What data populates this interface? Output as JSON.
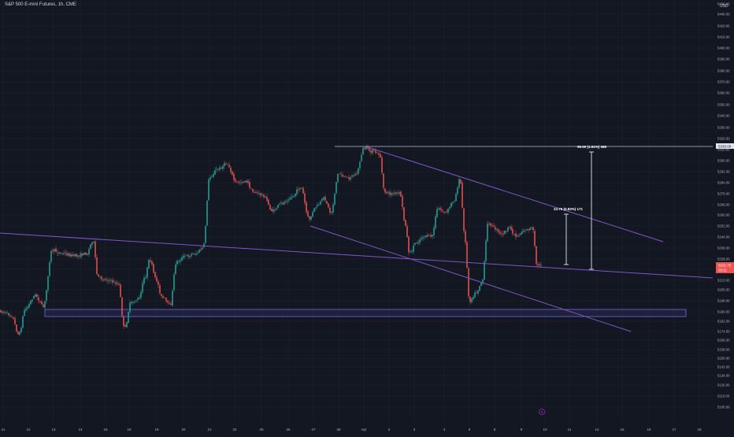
{
  "header": {
    "title": "S&P 500 E-mini Futures, 1h, CME",
    "currency": "USD"
  },
  "chart_data": {
    "type": "candlestick",
    "title": "S&P 500 E-mini Futures, 1h, CME",
    "y_axis_unit": "USD",
    "ylim": [
      5097,
      5478
    ],
    "y_ticks": [
      "5450.00",
      "5440.00",
      "5420.00",
      "5410.00",
      "5400.00",
      "5390.00",
      "5380.00",
      "5370.00",
      "5360.00",
      "5350.00",
      "5340.00",
      "5330.00",
      "5320.00",
      "5310.00",
      "5300.00",
      "5292.00",
      "5284.00",
      "5276.00",
      "5268.00",
      "5260.00",
      "5252.00",
      "5244.00",
      "5236.00",
      "5228.00",
      "5220.00",
      "5213.00",
      "5205.00",
      "5198.00",
      "5190.00",
      "5182.00",
      "5174.00",
      "5166.00",
      "5158.00",
      "5150.00",
      "5142.00",
      "5134.00",
      "5125.00",
      "5115.00",
      "5106.00"
    ],
    "x_ticks": [
      "11",
      "12",
      "13",
      "14",
      "15",
      "18",
      "19",
      "20",
      "21",
      "22",
      "25",
      "26",
      "27",
      "28",
      "Apr",
      "2",
      "3",
      "4",
      "5",
      "8",
      "9",
      "10",
      "11",
      "12",
      "15",
      "16",
      "17",
      "18"
    ],
    "price_labels": {
      "top": "5330.00",
      "current": "5232.75",
      "countdown": "29:11"
    },
    "annotations": {
      "upper_measure": "99.50 (1.91%) 398",
      "lower_measure": "43.75 (0.83%) 171"
    },
    "colors": {
      "background": "#131722",
      "up": "#26a69a",
      "down": "#ef5350",
      "trendline": "#7e57c2",
      "text": "#b2b5be"
    }
  }
}
